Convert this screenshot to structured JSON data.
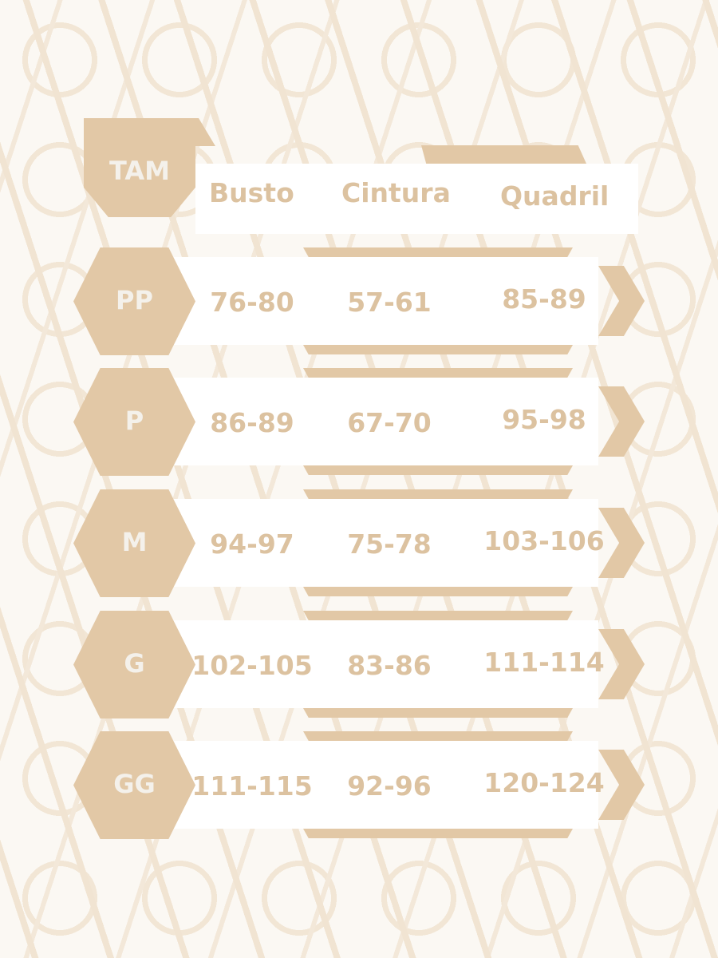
{
  "colors": {
    "accent": "#e2c8a6",
    "text": "#dcc2a0",
    "label": "#f4f1eb",
    "pattern": "#f1e4d2"
  },
  "header": {
    "size_label": "TAM",
    "columns": [
      "Busto",
      "Cintura",
      "Quadril"
    ]
  },
  "rows": [
    {
      "size": "PP",
      "busto": "76-80",
      "cintura": "57-61",
      "quadril": "85-89"
    },
    {
      "size": "P",
      "busto": "86-89",
      "cintura": "67-70",
      "quadril": "95-98"
    },
    {
      "size": "M",
      "busto": "94-97",
      "cintura": "75-78",
      "quadril": "103-106"
    },
    {
      "size": "G",
      "busto": "102-105",
      "cintura": "83-86",
      "quadril": "111-114"
    },
    {
      "size": "GG",
      "busto": "111-115",
      "cintura": "92-96",
      "quadril": "120-124"
    }
  ]
}
